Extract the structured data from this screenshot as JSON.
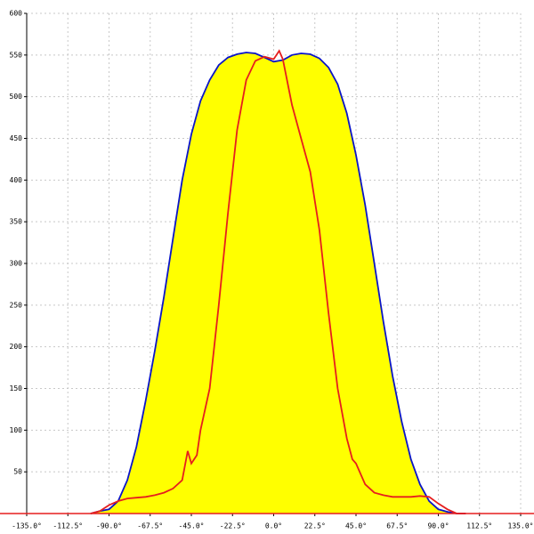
{
  "chart_data": {
    "type": "area-line",
    "xlim": [
      -135,
      135
    ],
    "ylim": [
      0,
      600
    ],
    "xticks": [
      {
        "value": -135,
        "label": "-135.0°"
      },
      {
        "value": -112.5,
        "label": "-112.5°"
      },
      {
        "value": -90,
        "label": "-90.0°"
      },
      {
        "value": -67.5,
        "label": "-67.5°"
      },
      {
        "value": -45,
        "label": "-45.0°"
      },
      {
        "value": -22.5,
        "label": "-22.5°"
      },
      {
        "value": 0,
        "label": "0.0°"
      },
      {
        "value": 22.5,
        "label": "22.5°"
      },
      {
        "value": 45,
        "label": "45.0°"
      },
      {
        "value": 67.5,
        "label": "67.5°"
      },
      {
        "value": 90,
        "label": "90.0°"
      },
      {
        "value": 112.5,
        "label": "112.5°"
      },
      {
        "value": 135,
        "label": "135.0°"
      }
    ],
    "yticks": [
      50,
      100,
      150,
      200,
      250,
      300,
      350,
      400,
      450,
      500,
      550,
      600
    ],
    "grid": true,
    "series": [
      {
        "color": "#0a14c8",
        "fill": "#ffff00",
        "x": [
          -100,
          -95,
          -90,
          -85,
          -80,
          -75,
          -70,
          -65,
          -60,
          -55,
          -50,
          -45,
          -40,
          -35,
          -30,
          -25,
          -20,
          -15,
          -10,
          -5,
          0,
          5,
          10,
          15,
          20,
          25,
          30,
          35,
          40,
          45,
          50,
          55,
          60,
          65,
          70,
          75,
          80,
          85,
          90,
          95,
          100,
          105
        ],
        "values": [
          0,
          3,
          5,
          15,
          40,
          80,
          135,
          195,
          260,
          330,
          400,
          455,
          495,
          520,
          538,
          547,
          551,
          553,
          552,
          547,
          542,
          544,
          550,
          552,
          551,
          546,
          535,
          515,
          480,
          430,
          370,
          300,
          230,
          165,
          110,
          65,
          35,
          15,
          5,
          2,
          0,
          0
        ]
      },
      {
        "color": "#e61e1e",
        "x": [
          -100,
          -95,
          -90,
          -85,
          -80,
          -75,
          -70,
          -65,
          -60,
          -55,
          -50,
          -47,
          -45,
          -42,
          -40,
          -35,
          -30,
          -25,
          -20,
          -15,
          -10,
          -5,
          0,
          3,
          5,
          10,
          15,
          20,
          25,
          30,
          35,
          40,
          43,
          45,
          50,
          55,
          60,
          65,
          70,
          75,
          80,
          85,
          90,
          95,
          100,
          105
        ],
        "values": [
          0,
          3,
          10,
          15,
          18,
          19,
          20,
          22,
          25,
          30,
          40,
          75,
          60,
          70,
          100,
          150,
          250,
          360,
          460,
          520,
          543,
          548,
          545,
          555,
          545,
          490,
          450,
          410,
          340,
          240,
          150,
          90,
          65,
          60,
          35,
          25,
          22,
          20,
          20,
          20,
          21,
          20,
          12,
          5,
          0,
          0
        ]
      }
    ]
  }
}
